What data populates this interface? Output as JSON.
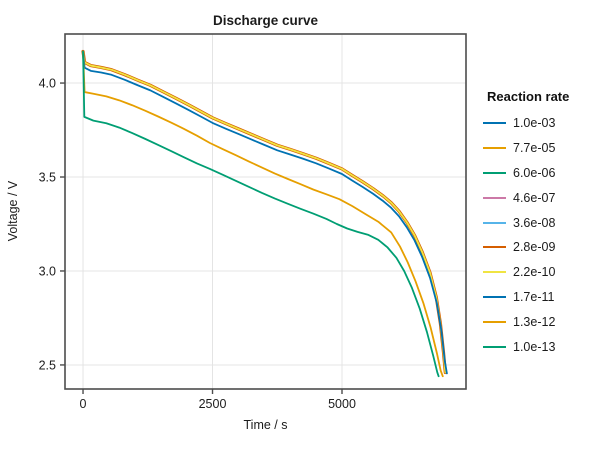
{
  "chart_data": {
    "type": "line",
    "title": "Discharge curve",
    "xlabel": "Time / s",
    "ylabel": "Voltage / V",
    "xlim": [
      -348,
      7394
    ],
    "ylim": [
      2.372,
      4.261
    ],
    "grid": true,
    "xticks": [
      {
        "value": 0,
        "label": "0"
      },
      {
        "value": 2500,
        "label": "2500"
      },
      {
        "value": 5000,
        "label": "5000"
      }
    ],
    "yticks": [
      {
        "value": 2.5,
        "label": "2.5"
      },
      {
        "value": 3.0,
        "label": "3.0"
      },
      {
        "value": 3.5,
        "label": "3.5"
      },
      {
        "value": 4.0,
        "label": "4.0"
      }
    ],
    "legend": {
      "title": "Reaction rate",
      "position": "right-outside"
    },
    "palette_wong": [
      "#0072B2",
      "#E69F00",
      "#009E73",
      "#CC79A7",
      "#56B4E9",
      "#D55E00",
      "#F0E442"
    ],
    "series": [
      {
        "name": "1.0e-03",
        "color": "#0072B2",
        "curve": "bundle_high_rates",
        "width": 1.8
      },
      {
        "name": "7.7e-05",
        "color": "#E69F00",
        "curve": "bundle_high_rates",
        "width": 1.8
      },
      {
        "name": "6.0e-06",
        "color": "#009E73",
        "curve": "bundle_high_rates",
        "width": 1.8
      },
      {
        "name": "4.6e-07",
        "color": "#CC79A7",
        "curve": "bundle_high_rates",
        "width": 1.8
      },
      {
        "name": "3.6e-08",
        "color": "#56B4E9",
        "curve": "bundle_high_rates",
        "width": 1.8
      },
      {
        "name": "2.8e-09",
        "color": "#D55E00",
        "curve": "bundle_high_rates",
        "width": 3.2
      },
      {
        "name": "2.2e-10",
        "color": "#F0E442",
        "curve": "bundle_high_rates",
        "width": 1.8
      },
      {
        "name": "1.7e-11",
        "color": "#0072B2",
        "curve": "rate_1p7e-11",
        "width": 1.8
      },
      {
        "name": "1.3e-12",
        "color": "#E69F00",
        "curve": "rate_1p3e-12",
        "width": 1.8
      },
      {
        "name": "1.0e-13",
        "color": "#009E73",
        "curve": "rate_1p0e-13",
        "width": 1.8
      }
    ],
    "curves": {
      "bundle_high_rates": [
        [
          0,
          4.168
        ],
        [
          30,
          4.11
        ],
        [
          150,
          4.093
        ],
        [
          350,
          4.083
        ],
        [
          550,
          4.071
        ],
        [
          800,
          4.045
        ],
        [
          1050,
          4.016
        ],
        [
          1300,
          3.988
        ],
        [
          1550,
          3.953
        ],
        [
          1800,
          3.918
        ],
        [
          2050,
          3.882
        ],
        [
          2300,
          3.845
        ],
        [
          2500,
          3.815
        ],
        [
          2750,
          3.785
        ],
        [
          3000,
          3.756
        ],
        [
          3250,
          3.727
        ],
        [
          3500,
          3.698
        ],
        [
          3750,
          3.669
        ],
        [
          4000,
          3.647
        ],
        [
          4250,
          3.624
        ],
        [
          4500,
          3.6
        ],
        [
          4750,
          3.572
        ],
        [
          5000,
          3.543
        ],
        [
          5200,
          3.508
        ],
        [
          5400,
          3.474
        ],
        [
          5600,
          3.438
        ],
        [
          5800,
          3.398
        ],
        [
          5950,
          3.363
        ],
        [
          6100,
          3.318
        ],
        [
          6250,
          3.26
        ],
        [
          6400,
          3.19
        ],
        [
          6550,
          3.1
        ],
        [
          6700,
          2.99
        ],
        [
          6820,
          2.86
        ],
        [
          6900,
          2.72
        ],
        [
          6960,
          2.565
        ],
        [
          6995,
          2.46
        ]
      ],
      "rate_1p7e-11": [
        [
          0,
          4.168
        ],
        [
          30,
          4.082
        ],
        [
          150,
          4.065
        ],
        [
          350,
          4.056
        ],
        [
          550,
          4.044
        ],
        [
          800,
          4.018
        ],
        [
          1050,
          3.989
        ],
        [
          1300,
          3.961
        ],
        [
          1550,
          3.926
        ],
        [
          1800,
          3.891
        ],
        [
          2050,
          3.855
        ],
        [
          2300,
          3.818
        ],
        [
          2500,
          3.788
        ],
        [
          2750,
          3.758
        ],
        [
          3000,
          3.729
        ],
        [
          3250,
          3.7
        ],
        [
          3500,
          3.671
        ],
        [
          3750,
          3.642
        ],
        [
          4000,
          3.62
        ],
        [
          4250,
          3.597
        ],
        [
          4500,
          3.573
        ],
        [
          4750,
          3.545
        ],
        [
          5000,
          3.516
        ],
        [
          5200,
          3.481
        ],
        [
          5400,
          3.447
        ],
        [
          5600,
          3.411
        ],
        [
          5800,
          3.371
        ],
        [
          5950,
          3.336
        ],
        [
          6100,
          3.291
        ],
        [
          6250,
          3.233
        ],
        [
          6400,
          3.163
        ],
        [
          6550,
          3.073
        ],
        [
          6700,
          2.963
        ],
        [
          6830,
          2.83
        ],
        [
          6920,
          2.68
        ],
        [
          6985,
          2.52
        ],
        [
          7025,
          2.455
        ]
      ],
      "rate_1p3e-12": [
        [
          0,
          4.168
        ],
        [
          30,
          3.952
        ],
        [
          200,
          3.943
        ],
        [
          450,
          3.929
        ],
        [
          700,
          3.908
        ],
        [
          950,
          3.882
        ],
        [
          1200,
          3.853
        ],
        [
          1450,
          3.822
        ],
        [
          1700,
          3.79
        ],
        [
          1950,
          3.756
        ],
        [
          2200,
          3.72
        ],
        [
          2450,
          3.681
        ],
        [
          2700,
          3.648
        ],
        [
          2950,
          3.616
        ],
        [
          3200,
          3.583
        ],
        [
          3450,
          3.551
        ],
        [
          3700,
          3.519
        ],
        [
          3950,
          3.49
        ],
        [
          4200,
          3.462
        ],
        [
          4450,
          3.433
        ],
        [
          4700,
          3.408
        ],
        [
          4950,
          3.382
        ],
        [
          5200,
          3.345
        ],
        [
          5450,
          3.303
        ],
        [
          5700,
          3.262
        ],
        [
          5950,
          3.205
        ],
        [
          6120,
          3.13
        ],
        [
          6270,
          3.045
        ],
        [
          6420,
          2.945
        ],
        [
          6570,
          2.83
        ],
        [
          6710,
          2.7
        ],
        [
          6830,
          2.565
        ],
        [
          6905,
          2.47
        ],
        [
          6945,
          2.44
        ]
      ],
      "rate_1p0e-13": [
        [
          0,
          4.168
        ],
        [
          25,
          3.82
        ],
        [
          200,
          3.8
        ],
        [
          450,
          3.786
        ],
        [
          700,
          3.763
        ],
        [
          950,
          3.734
        ],
        [
          1200,
          3.703
        ],
        [
          1450,
          3.671
        ],
        [
          1700,
          3.638
        ],
        [
          1950,
          3.605
        ],
        [
          2200,
          3.572
        ],
        [
          2450,
          3.543
        ],
        [
          2700,
          3.512
        ],
        [
          2950,
          3.48
        ],
        [
          3200,
          3.448
        ],
        [
          3450,
          3.416
        ],
        [
          3700,
          3.386
        ],
        [
          3950,
          3.358
        ],
        [
          4200,
          3.331
        ],
        [
          4450,
          3.305
        ],
        [
          4700,
          3.277
        ],
        [
          4900,
          3.25
        ],
        [
          5100,
          3.226
        ],
        [
          5300,
          3.208
        ],
        [
          5500,
          3.193
        ],
        [
          5700,
          3.166
        ],
        [
          5880,
          3.125
        ],
        [
          6050,
          3.07
        ],
        [
          6200,
          3.0
        ],
        [
          6350,
          2.91
        ],
        [
          6500,
          2.8
        ],
        [
          6640,
          2.675
        ],
        [
          6760,
          2.55
        ],
        [
          6840,
          2.46
        ],
        [
          6865,
          2.44
        ]
      ]
    },
    "frame_color": "#4d4d4d",
    "grid_color": "#e4e4e4"
  }
}
